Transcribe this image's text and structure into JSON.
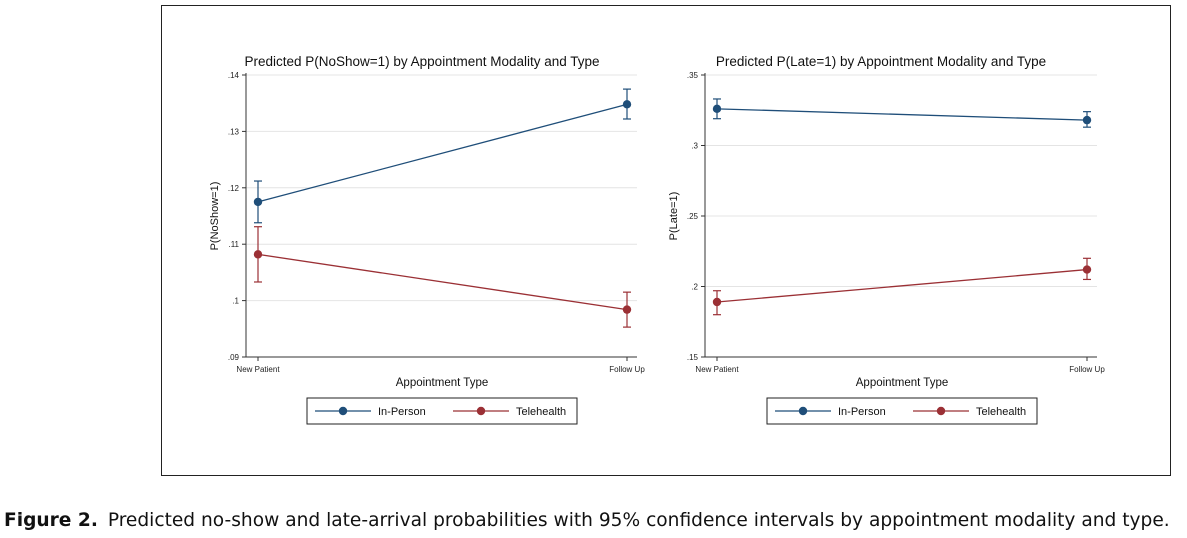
{
  "caption": {
    "label": "Figure 2.",
    "text": "Predicted no-show and late-arrival probabilities with 95% confidence intervals by appointment modality and type."
  },
  "colors": {
    "in_person": "#1f4e79",
    "telehealth": "#9b3035",
    "grid": "#e4e4e4",
    "axis": "#333333"
  },
  "chart_data": [
    {
      "type": "line",
      "title": "Predicted P(NoShow=1) by Appointment Modality and Type",
      "xlabel": "Appointment Type",
      "ylabel": "P(NoShow=1)",
      "categories": [
        "New Patient",
        "Follow Up"
      ],
      "ylim": [
        0.09,
        0.14
      ],
      "yticks": [
        0.09,
        0.1,
        0.11,
        0.12,
        0.13,
        0.14
      ],
      "ytick_labels": [
        ".09",
        ".1",
        ".11",
        ".12",
        ".13",
        ".14"
      ],
      "grid": true,
      "legend_position": "bottom",
      "series": [
        {
          "name": "In-Person",
          "values": [
            0.1175,
            0.1348
          ],
          "ci_low": [
            0.1138,
            0.1322
          ],
          "ci_high": [
            0.1212,
            0.1375
          ]
        },
        {
          "name": "Telehealth",
          "values": [
            0.1082,
            0.0984
          ],
          "ci_low": [
            0.1033,
            0.0953
          ],
          "ci_high": [
            0.1131,
            0.1015
          ]
        }
      ]
    },
    {
      "type": "line",
      "title": "Predicted P(Late=1) by Appointment Modality and Type",
      "xlabel": "Appointment Type",
      "ylabel": "P(Late=1)",
      "categories": [
        "New Patient",
        "Follow Up"
      ],
      "ylim": [
        0.15,
        0.35
      ],
      "yticks": [
        0.15,
        0.2,
        0.25,
        0.3,
        0.35
      ],
      "ytick_labels": [
        ".15",
        ".2",
        ".25",
        ".3",
        ".35"
      ],
      "grid": true,
      "legend_position": "bottom",
      "series": [
        {
          "name": "In-Person",
          "values": [
            0.326,
            0.318
          ],
          "ci_low": [
            0.319,
            0.313
          ],
          "ci_high": [
            0.333,
            0.324
          ]
        },
        {
          "name": "Telehealth",
          "values": [
            0.189,
            0.212
          ],
          "ci_low": [
            0.18,
            0.205
          ],
          "ci_high": [
            0.197,
            0.22
          ]
        }
      ]
    }
  ]
}
